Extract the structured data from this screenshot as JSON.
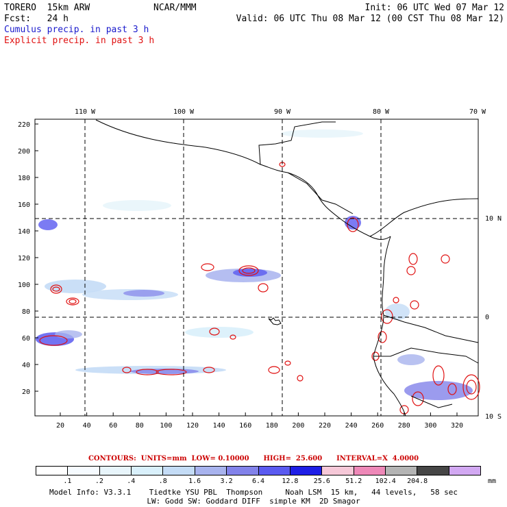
{
  "header": {
    "model": "TORERO  15km ARW",
    "org": "NCAR/MMM",
    "init": "Init: 06 UTC Wed 07 Mar 12",
    "fcst": "Fcst:   24 h",
    "valid": "Valid: 06 UTC Thu 08 Mar 12 (00 CST Thu 08 Mar 12)",
    "field1": "Cumulus precip. in past 3 h",
    "field2": "Explicit precip. in past 3 h",
    "field1_color": "#1a1acc",
    "field2_color": "#e01010"
  },
  "map": {
    "top_lon_labels": [
      "110 W",
      "100 W",
      "90 W",
      "80 W",
      "70 W"
    ],
    "right_lat_labels": [
      "10 N",
      "0",
      "10 S"
    ],
    "y_ticks": [
      "220",
      "200",
      "180",
      "160",
      "140",
      "120",
      "100",
      "80",
      "60",
      "40",
      "20"
    ],
    "x_ticks": [
      "20",
      "40",
      "60",
      "80",
      "100",
      "120",
      "140",
      "160",
      "180",
      "200",
      "220",
      "240",
      "260",
      "280",
      "300",
      "320"
    ]
  },
  "legend": {
    "contours": "CONTOURS:  UNITS=mm  LOW= 0.10000      HIGH=  25.600      INTERVAL=X  4.0000",
    "colors": [
      "#ffffff",
      "#f6fbff",
      "#e8f5fb",
      "#d9f0fb",
      "#c4dcf6",
      "#a8b3ee",
      "#8282ea",
      "#5a5af0",
      "#1e1ee6",
      "#f6c8d8",
      "#ee88b8",
      "#b4b4b4",
      "#464646",
      "#d2a8f2"
    ],
    "labels": [
      ".1",
      ".2",
      ".4",
      ".8",
      "1.6",
      "3.2",
      "6.4",
      "12.8",
      "25.6",
      "51.2",
      "102.4",
      "204.8"
    ],
    "unit": "mm"
  },
  "model_info": {
    "line1": "Model Info: V3.3.1    Tiedtke YSU PBL  Thompson     Noah LSM  15 km,   44 levels,   58 sec",
    "line2": "LW: Godd SW: Goddard DIFF  simple KM  2D Smagor"
  }
}
